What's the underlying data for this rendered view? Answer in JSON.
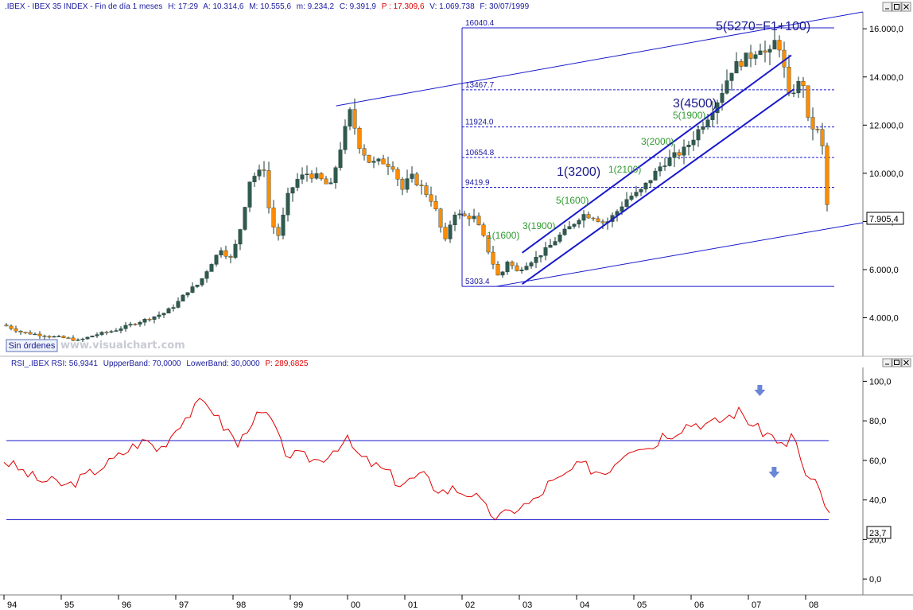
{
  "price_header": {
    "symbol": ".IBEX - IBEX 35 INDEX - Fin de día 1 meses",
    "h": "H: 17:29",
    "a": "A: 10.314,6",
    "m": "M: 10.555,6",
    "mn": "m: 9.234,2",
    "c": "C: 9.391,9",
    "p": "P : 17.309,6",
    "v": "V: 1.069.738",
    "f": "F: 30/07/1999"
  },
  "rsi_header": {
    "symbol": "RSI_.IBEX RSI: 56,9341",
    "upper": "UppperBand: 70,0000",
    "lower": "LowerBand: 30,0000",
    "p": "P: 289,6825"
  },
  "button_label": "Sin órdenes",
  "watermark": "www.visualchart.com",
  "last_price_label": "7.905,4",
  "last_rsi_label": "23,7",
  "fib_labels": [
    "16040.4",
    "13467.7",
    "11924.0",
    "10654.8",
    "9419.9",
    "5303.4"
  ],
  "wave_labels": {
    "w5_main": "5(5270=F1+100)",
    "w3_main": "3(4500)",
    "w1_main": "1(3200)",
    "sub_1": "1(1600)",
    "sub_3": "3(1900)",
    "sub_5": "5(1600)",
    "sub_c1": "1(2100)",
    "sub_c3": "3(2000)",
    "sub_c5": "5(1900)"
  },
  "colors": {
    "up_candle": "#2f5a4f",
    "down_candle": "#ff8c00",
    "trend_line": "#1a1acc",
    "rsi_line": "#e00000",
    "band_line": "#1a1acc",
    "text_red": "#e00000",
    "text_blue": "#1a1aa0"
  },
  "chart_data": [
    {
      "type": "candlestick",
      "title": ".IBEX - IBEX 35 INDEX",
      "x_ticks": [
        "94",
        "95",
        "96",
        "97",
        "98",
        "99",
        "00",
        "01",
        "02",
        "03",
        "04",
        "05",
        "06",
        "07",
        "08"
      ],
      "y_ticks": [
        "4.000,0",
        "6.000,0",
        "8.000,0",
        "10.000,0",
        "12.000,0",
        "14.000,0",
        "16.000,0"
      ],
      "ylim": [
        2400,
        16700
      ],
      "xlim": [
        1994.0,
        2009.0
      ],
      "anchors": [
        [
          1994.0,
          3700
        ],
        [
          1994.3,
          3400
        ],
        [
          1994.6,
          3300
        ],
        [
          1994.9,
          3200
        ],
        [
          1995.1,
          3150
        ],
        [
          1995.3,
          3050
        ],
        [
          1995.6,
          3300
        ],
        [
          1995.9,
          3450
        ],
        [
          1996.2,
          3700
        ],
        [
          1996.5,
          3950
        ],
        [
          1996.8,
          4200
        ],
        [
          1997.0,
          4550
        ],
        [
          1997.2,
          5100
        ],
        [
          1997.4,
          5400
        ],
        [
          1997.6,
          6200
        ],
        [
          1997.8,
          6900
        ],
        [
          1997.95,
          6400
        ],
        [
          1998.1,
          7400
        ],
        [
          1998.3,
          9800
        ],
        [
          1998.45,
          10000
        ],
        [
          1998.55,
          10250
        ],
        [
          1998.65,
          8000
        ],
        [
          1998.8,
          7400
        ],
        [
          1998.95,
          9000
        ],
        [
          1999.1,
          9700
        ],
        [
          1999.3,
          10000
        ],
        [
          1999.5,
          9800
        ],
        [
          1999.7,
          9400
        ],
        [
          1999.9,
          11300
        ],
        [
          2000.05,
          12600
        ],
        [
          2000.2,
          11200
        ],
        [
          2000.4,
          10400
        ],
        [
          2000.6,
          10500
        ],
        [
          2000.8,
          10300
        ],
        [
          2000.95,
          9300
        ],
        [
          2001.1,
          9900
        ],
        [
          2001.3,
          9400
        ],
        [
          2001.5,
          8800
        ],
        [
          2001.7,
          7100
        ],
        [
          2001.85,
          8400
        ],
        [
          2002.0,
          8200
        ],
        [
          2002.2,
          8200
        ],
        [
          2002.35,
          7500
        ],
        [
          2002.5,
          6500
        ],
        [
          2002.65,
          5600
        ],
        [
          2002.8,
          6400
        ],
        [
          2002.95,
          5900
        ],
        [
          2003.1,
          6200
        ],
        [
          2003.3,
          6500
        ],
        [
          2003.5,
          6900
        ],
        [
          2003.7,
          7400
        ],
        [
          2003.9,
          7800
        ],
        [
          2004.1,
          8300
        ],
        [
          2004.3,
          8200
        ],
        [
          2004.5,
          7900
        ],
        [
          2004.7,
          8400
        ],
        [
          2004.9,
          9000
        ],
        [
          2005.1,
          9200
        ],
        [
          2005.3,
          9800
        ],
        [
          2005.5,
          10400
        ],
        [
          2005.7,
          10700
        ],
        [
          2005.9,
          11000
        ],
        [
          2006.1,
          11700
        ],
        [
          2006.3,
          12400
        ],
        [
          2006.5,
          13200
        ],
        [
          2006.7,
          14300
        ],
        [
          2006.9,
          14700
        ],
        [
          2007.05,
          14900
        ],
        [
          2007.2,
          15300
        ],
        [
          2007.35,
          14800
        ],
        [
          2007.5,
          15700
        ],
        [
          2007.6,
          14700
        ],
        [
          2007.7,
          13100
        ],
        [
          2007.8,
          13500
        ],
        [
          2007.95,
          13900
        ],
        [
          2008.05,
          12000
        ],
        [
          2008.2,
          11800
        ],
        [
          2008.3,
          11000
        ],
        [
          2008.4,
          7905
        ]
      ],
      "overlays": {
        "fib_levels": [
          16040.4,
          13467.7,
          11924.0,
          10654.8,
          9419.9,
          5303.4
        ],
        "fib_x_start": 2002.0,
        "fib_x_end": 2008.5,
        "channel_top": [
          [
            1999.8,
            12800
          ],
          [
            2009.0,
            16700
          ]
        ],
        "channel_bottom": [
          [
            2002.6,
            5303
          ],
          [
            2009.0,
            7950
          ]
        ],
        "inner_upper": [
          [
            2003.05,
            6700
          ],
          [
            2007.75,
            14900
          ]
        ],
        "inner_lower": [
          [
            2003.05,
            5400
          ],
          [
            2007.8,
            13500
          ]
        ],
        "last_value": 7905.4
      }
    },
    {
      "type": "line",
      "title": "RSI_.IBEX RSI",
      "ylim": [
        -8,
        107
      ],
      "y_ticks": [
        "0,0",
        "20,0",
        "40,0",
        "60,0",
        "80,0",
        "100,0"
      ],
      "bands": [
        70,
        30
      ],
      "arrows_x": [
        2007.2,
        2007.45
      ],
      "series": [
        {
          "name": "RSI",
          "anchors": [
            [
              1994.0,
              60
            ],
            [
              1994.3,
              55
            ],
            [
              1994.6,
              50
            ],
            [
              1994.9,
              49
            ],
            [
              1995.1,
              47
            ],
            [
              1995.3,
              50
            ],
            [
              1995.6,
              55
            ],
            [
              1995.9,
              60
            ],
            [
              1996.1,
              64
            ],
            [
              1996.3,
              68
            ],
            [
              1996.5,
              70
            ],
            [
              1996.7,
              65
            ],
            [
              1996.9,
              72
            ],
            [
              1997.1,
              80
            ],
            [
              1997.3,
              85
            ],
            [
              1997.45,
              90
            ],
            [
              1997.6,
              88
            ],
            [
              1997.8,
              78
            ],
            [
              1997.95,
              74
            ],
            [
              1998.1,
              67
            ],
            [
              1998.3,
              80
            ],
            [
              1998.5,
              83
            ],
            [
              1998.65,
              82
            ],
            [
              1998.8,
              70
            ],
            [
              1998.95,
              63
            ],
            [
              1999.2,
              62
            ],
            [
              1999.5,
              60
            ],
            [
              1999.7,
              64
            ],
            [
              1999.85,
              68
            ],
            [
              2000.0,
              70
            ],
            [
              2000.2,
              62
            ],
            [
              2000.5,
              57
            ],
            [
              2000.7,
              54
            ],
            [
              2000.9,
              48
            ],
            [
              2001.1,
              50
            ],
            [
              2001.3,
              53
            ],
            [
              2001.5,
              47
            ],
            [
              2001.7,
              44
            ],
            [
              2001.85,
              46
            ],
            [
              2002.0,
              44
            ],
            [
              2002.2,
              43
            ],
            [
              2002.4,
              36
            ],
            [
              2002.6,
              31
            ],
            [
              2002.8,
              33
            ],
            [
              2002.95,
              36
            ],
            [
              2003.15,
              38
            ],
            [
              2003.3,
              40
            ],
            [
              2003.5,
              48
            ],
            [
              2003.7,
              50
            ],
            [
              2003.9,
              55
            ],
            [
              2004.1,
              58
            ],
            [
              2004.3,
              55
            ],
            [
              2004.5,
              54
            ],
            [
              2004.7,
              60
            ],
            [
              2004.9,
              66
            ],
            [
              2005.1,
              68
            ],
            [
              2005.3,
              66
            ],
            [
              2005.5,
              73
            ],
            [
              2005.7,
              74
            ],
            [
              2005.9,
              78
            ],
            [
              2006.1,
              79
            ],
            [
              2006.3,
              78
            ],
            [
              2006.5,
              80
            ],
            [
              2006.7,
              83
            ],
            [
              2006.85,
              85
            ],
            [
              2007.0,
              80
            ],
            [
              2007.15,
              76
            ],
            [
              2007.3,
              74
            ],
            [
              2007.5,
              71
            ],
            [
              2007.65,
              65
            ],
            [
              2007.8,
              75
            ],
            [
              2007.95,
              55
            ],
            [
              2008.05,
              50
            ],
            [
              2008.2,
              48
            ],
            [
              2008.3,
              40
            ],
            [
              2008.4,
              34
            ],
            [
              2008.47,
              24
            ]
          ]
        }
      ]
    }
  ]
}
